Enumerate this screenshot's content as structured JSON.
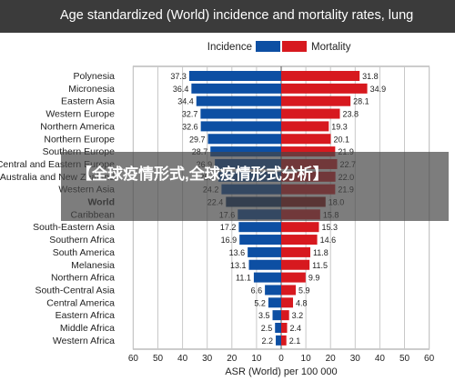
{
  "page": {
    "title": "Age standardized (World) incidence and mortality rates, lung",
    "overlay_text": "【全球疫情形式,全球疫情形式分析】"
  },
  "chart_data": {
    "type": "bar",
    "orientation": "horizontal-diverging",
    "xlabel": "ASR (World) per 100 000",
    "xlim": [
      -60,
      60
    ],
    "xticks": [
      60,
      50,
      40,
      30,
      20,
      10,
      0,
      10,
      20,
      30,
      40,
      50,
      60
    ],
    "grid": true,
    "legend_position": "top-center",
    "highlight_category": "World",
    "categories": [
      "Polynesia",
      "Micronesia",
      "Eastern Asia",
      "Western Europe",
      "Northern America",
      "Northern Europe",
      "Southern Europe",
      "Central and Eastern Europe",
      "Australia and New Zealand",
      "Western Asia",
      "World",
      "Caribbean",
      "South-Eastern Asia",
      "Southern Africa",
      "South America",
      "Melanesia",
      "Northern Africa",
      "South-Central Asia",
      "Central America",
      "Eastern Africa",
      "Middle Africa",
      "Western Africa"
    ],
    "series": [
      {
        "name": "Incidence",
        "side": "left",
        "color": "#0d4fa3",
        "highlight_color": "#0a2f66",
        "values": [
          37.3,
          36.4,
          34.4,
          32.7,
          32.6,
          29.7,
          28.7,
          26.9,
          25.5,
          24.2,
          22.4,
          17.6,
          17.2,
          16.9,
          13.6,
          13.1,
          11.1,
          6.6,
          5.2,
          3.5,
          2.5,
          2.2
        ]
      },
      {
        "name": "Mortality",
        "side": "right",
        "color": "#d7191f",
        "highlight_color": "#8b1010",
        "values": [
          31.8,
          34.9,
          28.1,
          23.8,
          19.3,
          20.1,
          21.9,
          22.7,
          22.0,
          21.9,
          18.0,
          15.8,
          15.3,
          14.6,
          11.8,
          11.5,
          9.9,
          5.9,
          4.8,
          3.2,
          2.4,
          2.1
        ]
      }
    ]
  }
}
